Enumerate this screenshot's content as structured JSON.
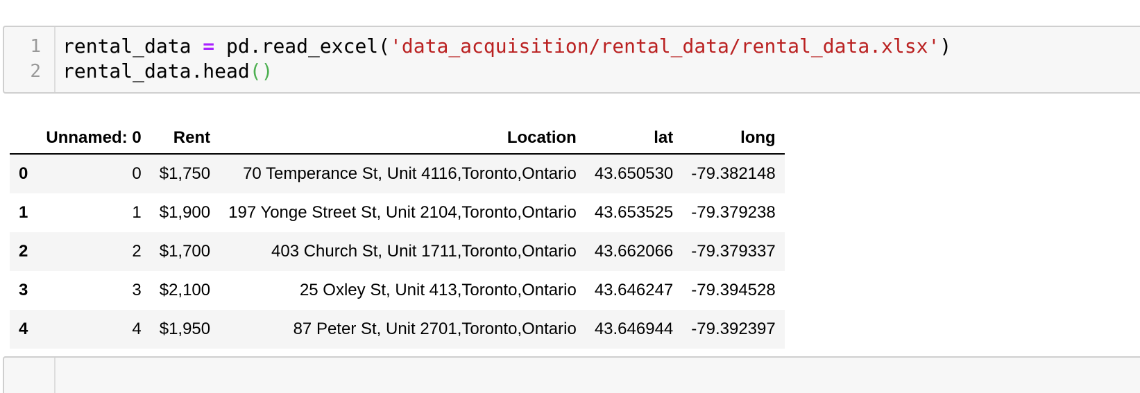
{
  "code_cell": {
    "lines": [
      {
        "number": "1",
        "var": "rental_data",
        "op": " = ",
        "call": "pd.read_excel(",
        "string": "'data_acquisition/rental_data/rental_data.xlsx'",
        "close": ")"
      },
      {
        "number": "2",
        "call": "rental_data.head",
        "parens": "()"
      }
    ]
  },
  "dataframe": {
    "columns": [
      "",
      "Unnamed: 0",
      "Rent",
      "Location",
      "lat",
      "long"
    ],
    "rows": [
      [
        "0",
        "0",
        "$1,750",
        "70 Temperance St, Unit 4116,Toronto,Ontario",
        "43.650530",
        "-79.382148"
      ],
      [
        "1",
        "1",
        "$1,900",
        "197 Yonge Street St, Unit 2104,Toronto,Ontario",
        "43.653525",
        "-79.379238"
      ],
      [
        "2",
        "2",
        "$1,700",
        "403 Church St, Unit 1711,Toronto,Ontario",
        "43.662066",
        "-79.379337"
      ],
      [
        "3",
        "3",
        "$2,100",
        "25 Oxley St, Unit 413,Toronto,Ontario",
        "43.646247",
        "-79.394528"
      ],
      [
        "4",
        "4",
        "$1,950",
        "87 Peter St, Unit 2701,Toronto,Ontario",
        "43.646944",
        "-79.392397"
      ]
    ]
  },
  "colors": {
    "keyword_operator": "#aa22ff",
    "string": "#ba2121",
    "bracket_match": "#4caf50",
    "cell_background": "#f7f7f7",
    "row_stripe": "#f5f5f5"
  }
}
